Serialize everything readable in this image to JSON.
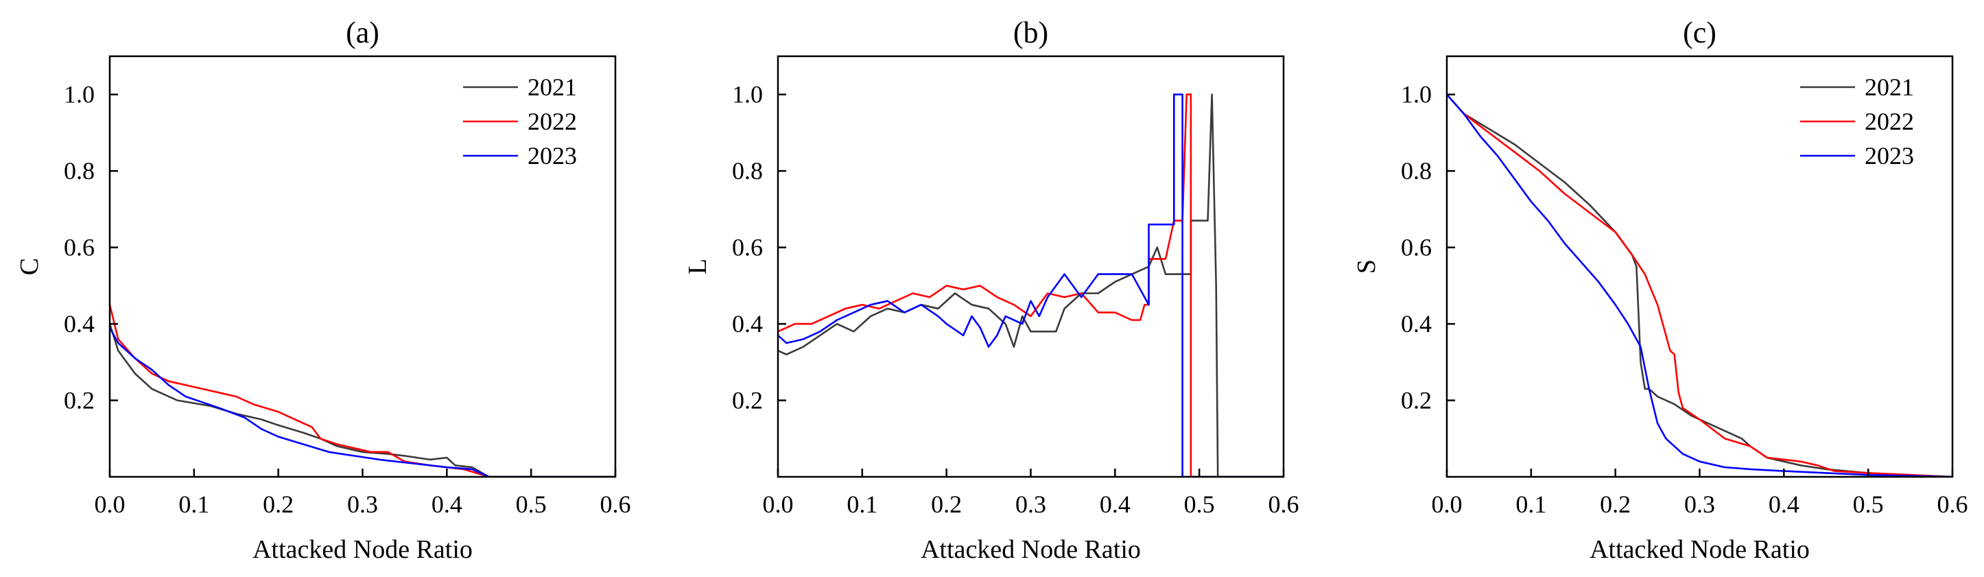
{
  "chart_data": [
    {
      "panel": "a",
      "type": "line",
      "title": "(a)",
      "xlabel": "Attacked Node Ratio",
      "ylabel": "C",
      "xlim": [
        0.0,
        0.6
      ],
      "ylim": [
        0.0,
        1.1
      ],
      "xticks": [
        "0.0",
        "0.1",
        "0.2",
        "0.3",
        "0.4",
        "0.5",
        "0.6"
      ],
      "yticks": [
        "0.2",
        "0.4",
        "0.6",
        "0.8",
        "1.0"
      ],
      "legend": {
        "position": "top-right",
        "entries": [
          "2021",
          "2022",
          "2023"
        ]
      },
      "series": [
        {
          "name": "2021",
          "color": "#3a3a3a",
          "points": [
            [
              0,
              0.4
            ],
            [
              0.01,
              0.33
            ],
            [
              0.03,
              0.27
            ],
            [
              0.05,
              0.23
            ],
            [
              0.08,
              0.2
            ],
            [
              0.12,
              0.185
            ],
            [
              0.15,
              0.165
            ],
            [
              0.18,
              0.15
            ],
            [
              0.2,
              0.135
            ],
            [
              0.23,
              0.115
            ],
            [
              0.25,
              0.1
            ],
            [
              0.27,
              0.08
            ],
            [
              0.3,
              0.065
            ],
            [
              0.33,
              0.06
            ],
            [
              0.35,
              0.055
            ],
            [
              0.38,
              0.045
            ],
            [
              0.4,
              0.05
            ],
            [
              0.41,
              0.03
            ],
            [
              0.43,
              0.025
            ],
            [
              0.45,
              0.0
            ],
            [
              0.6,
              0.0
            ]
          ]
        },
        {
          "name": "2022",
          "color": "#ff0000",
          "points": [
            [
              0,
              0.45
            ],
            [
              0.01,
              0.36
            ],
            [
              0.03,
              0.31
            ],
            [
              0.05,
              0.27
            ],
            [
              0.07,
              0.25
            ],
            [
              0.1,
              0.235
            ],
            [
              0.13,
              0.22
            ],
            [
              0.15,
              0.21
            ],
            [
              0.17,
              0.19
            ],
            [
              0.2,
              0.17
            ],
            [
              0.22,
              0.15
            ],
            [
              0.24,
              0.13
            ],
            [
              0.25,
              0.1
            ],
            [
              0.27,
              0.085
            ],
            [
              0.29,
              0.075
            ],
            [
              0.31,
              0.065
            ],
            [
              0.33,
              0.065
            ],
            [
              0.35,
              0.04
            ],
            [
              0.38,
              0.03
            ],
            [
              0.42,
              0.02
            ],
            [
              0.45,
              0.0
            ],
            [
              0.6,
              0.0
            ]
          ]
        },
        {
          "name": "2023",
          "color": "#0000ff",
          "points": [
            [
              0,
              0.39
            ],
            [
              0.01,
              0.35
            ],
            [
              0.03,
              0.31
            ],
            [
              0.05,
              0.28
            ],
            [
              0.07,
              0.24
            ],
            [
              0.09,
              0.21
            ],
            [
              0.11,
              0.195
            ],
            [
              0.13,
              0.18
            ],
            [
              0.16,
              0.155
            ],
            [
              0.18,
              0.125
            ],
            [
              0.2,
              0.105
            ],
            [
              0.23,
              0.085
            ],
            [
              0.26,
              0.065
            ],
            [
              0.29,
              0.055
            ],
            [
              0.32,
              0.045
            ],
            [
              0.36,
              0.035
            ],
            [
              0.4,
              0.025
            ],
            [
              0.43,
              0.02
            ],
            [
              0.45,
              0.0
            ],
            [
              0.6,
              0.0
            ]
          ]
        }
      ]
    },
    {
      "panel": "b",
      "type": "line",
      "title": "(b)",
      "xlabel": "Attacked Node Ratio",
      "ylabel": "L",
      "xlim": [
        0.0,
        0.6
      ],
      "ylim": [
        0.0,
        1.1
      ],
      "xticks": [
        "0.0",
        "0.1",
        "0.2",
        "0.3",
        "0.4",
        "0.5",
        "0.6"
      ],
      "yticks": [
        "0.2",
        "0.4",
        "0.6",
        "0.8",
        "1.0"
      ],
      "legend": null,
      "series": [
        {
          "name": "2021",
          "color": "#3a3a3a",
          "points": [
            [
              0,
              0.33
            ],
            [
              0.01,
              0.32
            ],
            [
              0.03,
              0.34
            ],
            [
              0.05,
              0.37
            ],
            [
              0.07,
              0.4
            ],
            [
              0.09,
              0.38
            ],
            [
              0.11,
              0.42
            ],
            [
              0.13,
              0.44
            ],
            [
              0.15,
              0.43
            ],
            [
              0.17,
              0.45
            ],
            [
              0.19,
              0.44
            ],
            [
              0.21,
              0.48
            ],
            [
              0.23,
              0.45
            ],
            [
              0.25,
              0.44
            ],
            [
              0.27,
              0.4
            ],
            [
              0.28,
              0.34
            ],
            [
              0.29,
              0.42
            ],
            [
              0.3,
              0.38
            ],
            [
              0.33,
              0.38
            ],
            [
              0.34,
              0.44
            ],
            [
              0.36,
              0.48
            ],
            [
              0.38,
              0.48
            ],
            [
              0.4,
              0.51
            ],
            [
              0.44,
              0.55
            ],
            [
              0.45,
              0.6
            ],
            [
              0.46,
              0.53
            ],
            [
              0.49,
              0.53
            ],
            [
              0.49,
              0.67
            ],
            [
              0.51,
              0.67
            ],
            [
              0.515,
              1.0
            ],
            [
              0.52,
              0.5
            ],
            [
              0.522,
              0.0
            ],
            [
              0.6,
              0.0
            ]
          ]
        },
        {
          "name": "2022",
          "color": "#ff0000",
          "points": [
            [
              0,
              0.38
            ],
            [
              0.02,
              0.4
            ],
            [
              0.04,
              0.4
            ],
            [
              0.06,
              0.42
            ],
            [
              0.08,
              0.44
            ],
            [
              0.1,
              0.45
            ],
            [
              0.12,
              0.44
            ],
            [
              0.14,
              0.46
            ],
            [
              0.16,
              0.48
            ],
            [
              0.18,
              0.47
            ],
            [
              0.2,
              0.5
            ],
            [
              0.22,
              0.49
            ],
            [
              0.24,
              0.5
            ],
            [
              0.26,
              0.47
            ],
            [
              0.28,
              0.45
            ],
            [
              0.3,
              0.42
            ],
            [
              0.32,
              0.48
            ],
            [
              0.34,
              0.47
            ],
            [
              0.36,
              0.48
            ],
            [
              0.38,
              0.43
            ],
            [
              0.4,
              0.43
            ],
            [
              0.42,
              0.41
            ],
            [
              0.43,
              0.41
            ],
            [
              0.435,
              0.45
            ],
            [
              0.44,
              0.45
            ],
            [
              0.44,
              0.57
            ],
            [
              0.46,
              0.57
            ],
            [
              0.47,
              0.67
            ],
            [
              0.48,
              0.67
            ],
            [
              0.485,
              1.0
            ],
            [
              0.49,
              1.0
            ],
            [
              0.49,
              0.0
            ],
            [
              0.6,
              0.0
            ]
          ]
        },
        {
          "name": "2023",
          "color": "#0000ff",
          "points": [
            [
              0,
              0.37
            ],
            [
              0.01,
              0.35
            ],
            [
              0.03,
              0.36
            ],
            [
              0.05,
              0.38
            ],
            [
              0.07,
              0.41
            ],
            [
              0.09,
              0.43
            ],
            [
              0.11,
              0.45
            ],
            [
              0.13,
              0.46
            ],
            [
              0.15,
              0.43
            ],
            [
              0.17,
              0.45
            ],
            [
              0.19,
              0.42
            ],
            [
              0.2,
              0.4
            ],
            [
              0.22,
              0.37
            ],
            [
              0.23,
              0.42
            ],
            [
              0.24,
              0.39
            ],
            [
              0.25,
              0.34
            ],
            [
              0.26,
              0.37
            ],
            [
              0.27,
              0.42
            ],
            [
              0.29,
              0.4
            ],
            [
              0.3,
              0.46
            ],
            [
              0.31,
              0.42
            ],
            [
              0.32,
              0.47
            ],
            [
              0.34,
              0.53
            ],
            [
              0.36,
              0.47
            ],
            [
              0.38,
              0.53
            ],
            [
              0.42,
              0.53
            ],
            [
              0.44,
              0.45
            ],
            [
              0.44,
              0.66
            ],
            [
              0.47,
              0.66
            ],
            [
              0.47,
              1.0
            ],
            [
              0.48,
              1.0
            ],
            [
              0.48,
              0.0
            ],
            [
              0.6,
              0.0
            ]
          ]
        }
      ]
    },
    {
      "panel": "c",
      "type": "line",
      "title": "(c)",
      "xlabel": "Attacked Node Ratio",
      "ylabel": "S",
      "xlim": [
        0.0,
        0.6
      ],
      "ylim": [
        0.0,
        1.1
      ],
      "xticks": [
        "0.0",
        "0.1",
        "0.2",
        "0.3",
        "0.4",
        "0.5",
        "0.6"
      ],
      "yticks": [
        "0.2",
        "0.4",
        "0.6",
        "0.8",
        "1.0"
      ],
      "legend": {
        "position": "top-right",
        "entries": [
          "2021",
          "2022",
          "2023"
        ]
      },
      "series": [
        {
          "name": "2021",
          "color": "#3a3a3a",
          "points": [
            [
              0,
              1.0
            ],
            [
              0.02,
              0.95
            ],
            [
              0.05,
              0.91
            ],
            [
              0.08,
              0.87
            ],
            [
              0.11,
              0.82
            ],
            [
              0.14,
              0.77
            ],
            [
              0.17,
              0.71
            ],
            [
              0.2,
              0.64
            ],
            [
              0.22,
              0.58
            ],
            [
              0.225,
              0.55
            ],
            [
              0.23,
              0.3
            ],
            [
              0.235,
              0.23
            ],
            [
              0.24,
              0.23
            ],
            [
              0.25,
              0.21
            ],
            [
              0.27,
              0.19
            ],
            [
              0.29,
              0.16
            ],
            [
              0.32,
              0.13
            ],
            [
              0.35,
              0.1
            ],
            [
              0.36,
              0.08
            ],
            [
              0.38,
              0.05
            ],
            [
              0.42,
              0.03
            ],
            [
              0.45,
              0.02
            ],
            [
              0.5,
              0.01
            ],
            [
              0.55,
              0.005
            ],
            [
              0.6,
              0.0
            ]
          ]
        },
        {
          "name": "2022",
          "color": "#ff0000",
          "points": [
            [
              0,
              1.0
            ],
            [
              0.02,
              0.95
            ],
            [
              0.05,
              0.9
            ],
            [
              0.08,
              0.85
            ],
            [
              0.11,
              0.8
            ],
            [
              0.14,
              0.74
            ],
            [
              0.17,
              0.69
            ],
            [
              0.2,
              0.64
            ],
            [
              0.22,
              0.58
            ],
            [
              0.235,
              0.53
            ],
            [
              0.25,
              0.45
            ],
            [
              0.26,
              0.37
            ],
            [
              0.265,
              0.33
            ],
            [
              0.27,
              0.32
            ],
            [
              0.275,
              0.22
            ],
            [
              0.28,
              0.18
            ],
            [
              0.3,
              0.15
            ],
            [
              0.33,
              0.1
            ],
            [
              0.36,
              0.08
            ],
            [
              0.38,
              0.05
            ],
            [
              0.42,
              0.04
            ],
            [
              0.44,
              0.03
            ],
            [
              0.46,
              0.015
            ],
            [
              0.5,
              0.01
            ],
            [
              0.55,
              0.005
            ],
            [
              0.6,
              0.0
            ]
          ]
        },
        {
          "name": "2023",
          "color": "#0000ff",
          "points": [
            [
              0,
              1.0
            ],
            [
              0.02,
              0.95
            ],
            [
              0.04,
              0.89
            ],
            [
              0.06,
              0.84
            ],
            [
              0.08,
              0.78
            ],
            [
              0.1,
              0.72
            ],
            [
              0.12,
              0.67
            ],
            [
              0.14,
              0.61
            ],
            [
              0.16,
              0.56
            ],
            [
              0.18,
              0.51
            ],
            [
              0.2,
              0.45
            ],
            [
              0.215,
              0.4
            ],
            [
              0.23,
              0.34
            ],
            [
              0.24,
              0.23
            ],
            [
              0.25,
              0.14
            ],
            [
              0.26,
              0.1
            ],
            [
              0.28,
              0.06
            ],
            [
              0.3,
              0.04
            ],
            [
              0.33,
              0.025
            ],
            [
              0.36,
              0.02
            ],
            [
              0.4,
              0.015
            ],
            [
              0.45,
              0.01
            ],
            [
              0.5,
              0.005
            ],
            [
              0.6,
              0.0
            ]
          ]
        }
      ]
    }
  ]
}
